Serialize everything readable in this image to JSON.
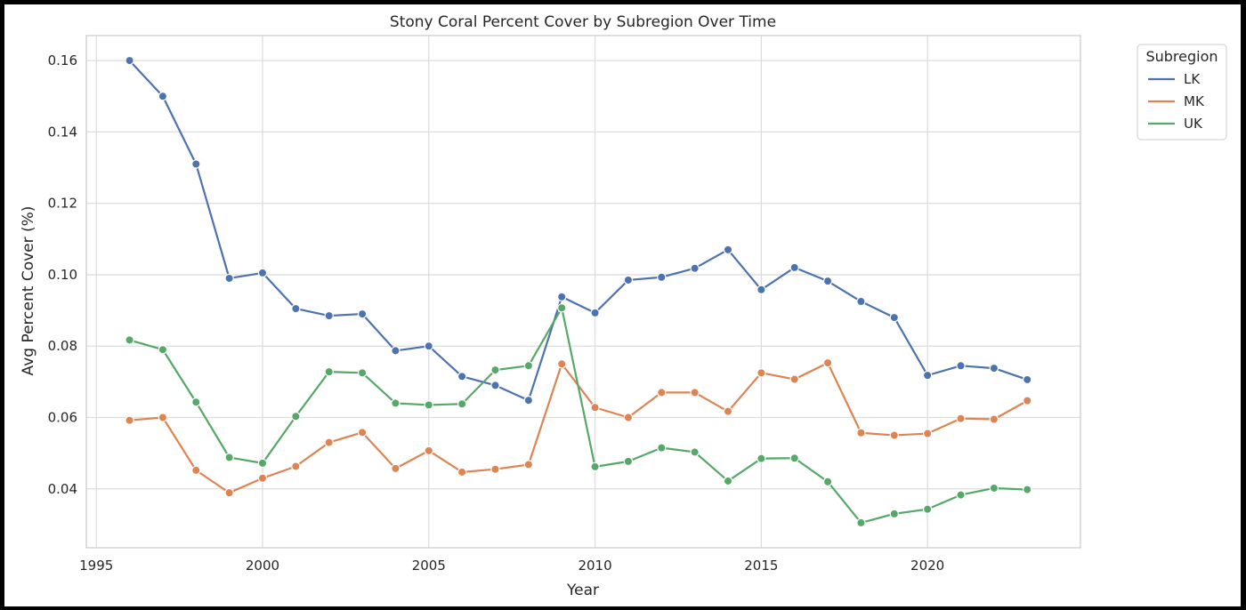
{
  "chart_data": {
    "type": "line",
    "title": "Stony Coral Percent Cover by Subregion Over Time",
    "xlabel": "Year",
    "ylabel": "Avg Percent Cover (%)",
    "xlim": [
      1994.7,
      2024.6
    ],
    "ylim": [
      0.0235,
      0.167
    ],
    "xticks": [
      1995,
      2000,
      2005,
      2010,
      2015,
      2020
    ],
    "yticks": [
      0.04,
      0.06,
      0.08,
      0.1,
      0.12,
      0.14,
      0.16
    ],
    "ytick_labels": [
      "0.04",
      "0.06",
      "0.08",
      "0.10",
      "0.12",
      "0.14",
      "0.16"
    ],
    "grid": true,
    "legend": {
      "title": "Subregion",
      "placement": "outside-top-right"
    },
    "x": [
      1996,
      1997,
      1998,
      1999,
      2000,
      2001,
      2002,
      2003,
      2004,
      2005,
      2006,
      2007,
      2008,
      2009,
      2010,
      2011,
      2012,
      2013,
      2014,
      2015,
      2016,
      2017,
      2018,
      2019,
      2020,
      2021,
      2022,
      2023
    ],
    "series": [
      {
        "name": "LK",
        "color": "#4c72b0",
        "values": [
          0.16,
          0.15,
          0.131,
          0.099,
          0.1005,
          0.0905,
          0.0885,
          0.089,
          0.0787,
          0.08,
          0.0715,
          0.069,
          0.0648,
          0.0938,
          0.0893,
          0.0985,
          0.0993,
          0.1018,
          0.107,
          0.0958,
          0.102,
          0.0982,
          0.0925,
          0.088,
          0.0718,
          0.0745,
          0.0738,
          0.0706
        ]
      },
      {
        "name": "MK",
        "color": "#dd8452",
        "values": [
          0.0592,
          0.06,
          0.0452,
          0.0389,
          0.043,
          0.0463,
          0.053,
          0.0558,
          0.0457,
          0.0507,
          0.0447,
          0.0455,
          0.0468,
          0.075,
          0.0628,
          0.06,
          0.067,
          0.067,
          0.0617,
          0.0725,
          0.0707,
          0.0753,
          0.0557,
          0.055,
          0.0555,
          0.0597,
          0.0595,
          0.0647
        ]
      },
      {
        "name": "UK",
        "color": "#55a868",
        "values": [
          0.0817,
          0.079,
          0.0643,
          0.0488,
          0.0472,
          0.0603,
          0.0728,
          0.0725,
          0.064,
          0.0635,
          0.0638,
          0.0733,
          0.0745,
          0.0907,
          0.0462,
          0.0477,
          0.0515,
          0.0503,
          0.0422,
          0.0485,
          0.0486,
          0.042,
          0.0305,
          0.033,
          0.0343,
          0.0383,
          0.0402,
          0.0398
        ]
      }
    ]
  }
}
